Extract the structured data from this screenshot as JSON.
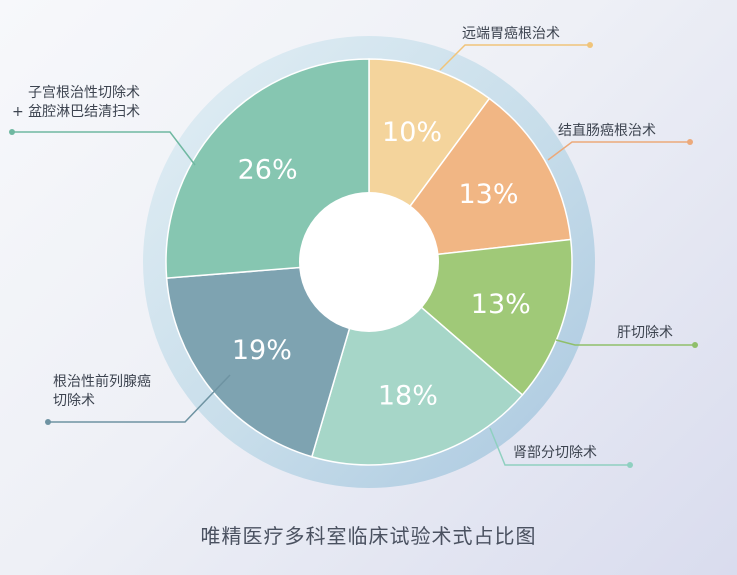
{
  "chart_data": {
    "type": "pie",
    "title": "唯精医疗多科室临床试验术式占比图",
    "slices": [
      {
        "label": "远端胃癌根治术",
        "value": 10,
        "display": "10%",
        "color": "#f4d49c"
      },
      {
        "label": "结直肠癌根治术",
        "value": 13,
        "display": "13%",
        "color": "#f1b684"
      },
      {
        "label": "肝切除术",
        "value": 13,
        "display": "13%",
        "color": "#a0c978"
      },
      {
        "label": "肾部分切除术",
        "value": 18,
        "display": "18%",
        "color": "#a6d6c8"
      },
      {
        "label": "根治性前列腺癌切除术",
        "value": 19,
        "display": "19%",
        "color": "#7ea3b1"
      },
      {
        "label": "子宫根治性切除术 + 盆腔淋巴结清扫术",
        "value": 26,
        "display": "26%",
        "color": "#86c6b1"
      }
    ],
    "callouts": [
      {
        "lines": [
          "远端胃癌根治术"
        ]
      },
      {
        "lines": [
          "结直肠癌根治术"
        ]
      },
      {
        "lines": [
          "肝切除术"
        ]
      },
      {
        "lines": [
          "肾部分切除术"
        ]
      },
      {
        "lines": [
          "根治性前列腺癌",
          "切除术"
        ]
      },
      {
        "lines": [
          "子宫根治性切除术",
          "+ 盆腔淋巴结清扫术"
        ]
      }
    ]
  }
}
